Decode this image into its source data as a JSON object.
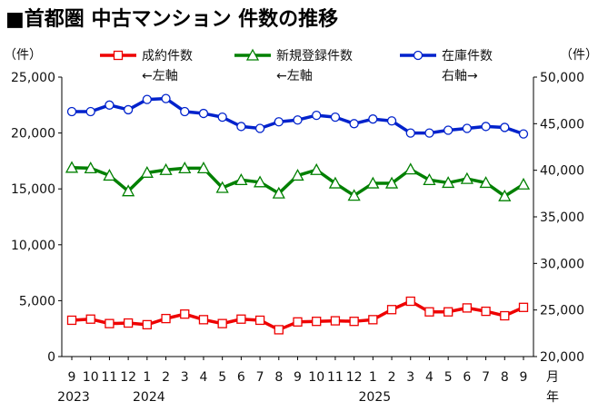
{
  "title": "■首都圏 中古マンション 件数の推移",
  "left_unit": "（件）",
  "right_unit": "（件）",
  "x_unit": [
    "月",
    "年"
  ],
  "chart_data": {
    "type": "line",
    "title": "首都圏 中古マンション 件数の推移",
    "x_labels": [
      "9",
      "10",
      "11",
      "12",
      "1",
      "2",
      "3",
      "4",
      "5",
      "6",
      "7",
      "8",
      "9",
      "10",
      "11",
      "12",
      "1",
      "2",
      "3",
      "4",
      "5",
      "6",
      "7",
      "8",
      "9"
    ],
    "year_labels": [
      {
        "label": "2023",
        "index": 0
      },
      {
        "label": "2024",
        "index": 4
      },
      {
        "label": "2025",
        "index": 16
      }
    ],
    "left_axis": {
      "min": 0,
      "max": 25000,
      "ticks": [
        "0",
        "5,000",
        "10,000",
        "15,000",
        "20,000",
        "25,000"
      ]
    },
    "right_axis": {
      "min": 20000,
      "max": 50000,
      "ticks": [
        "20,000",
        "25,000",
        "30,000",
        "35,000",
        "40,000",
        "45,000",
        "50,000"
      ]
    },
    "grid": false,
    "legend_position": "top",
    "series": [
      {
        "name": "成約件数",
        "note": "←左軸",
        "axis": "left",
        "color": "#ee0000",
        "marker": "square",
        "values": [
          3250,
          3350,
          2950,
          3000,
          2850,
          3400,
          3800,
          3300,
          2950,
          3350,
          3250,
          2400,
          3100,
          3150,
          3200,
          3150,
          3300,
          4200,
          4950,
          4000,
          4000,
          4350,
          4050,
          3650,
          4400
        ]
      },
      {
        "name": "新規登録件数",
        "note": "←左軸",
        "axis": "left",
        "color": "#008000",
        "marker": "triangle",
        "values": [
          16900,
          16850,
          16200,
          14800,
          16450,
          16700,
          16850,
          16850,
          15100,
          15800,
          15600,
          14600,
          16200,
          16700,
          15500,
          14400,
          15500,
          15500,
          16750,
          15800,
          15550,
          15900,
          15550,
          14350,
          15400
        ]
      },
      {
        "name": "在庫件数",
        "note": "右軸→",
        "axis": "right",
        "color": "#0022cc",
        "marker": "circle",
        "values": [
          46300,
          46300,
          47000,
          46500,
          47600,
          47700,
          46300,
          46100,
          45700,
          44700,
          44500,
          45200,
          45400,
          45900,
          45700,
          45000,
          45500,
          45300,
          44000,
          44000,
          44300,
          44500,
          44700,
          44600,
          43900
        ]
      }
    ]
  }
}
